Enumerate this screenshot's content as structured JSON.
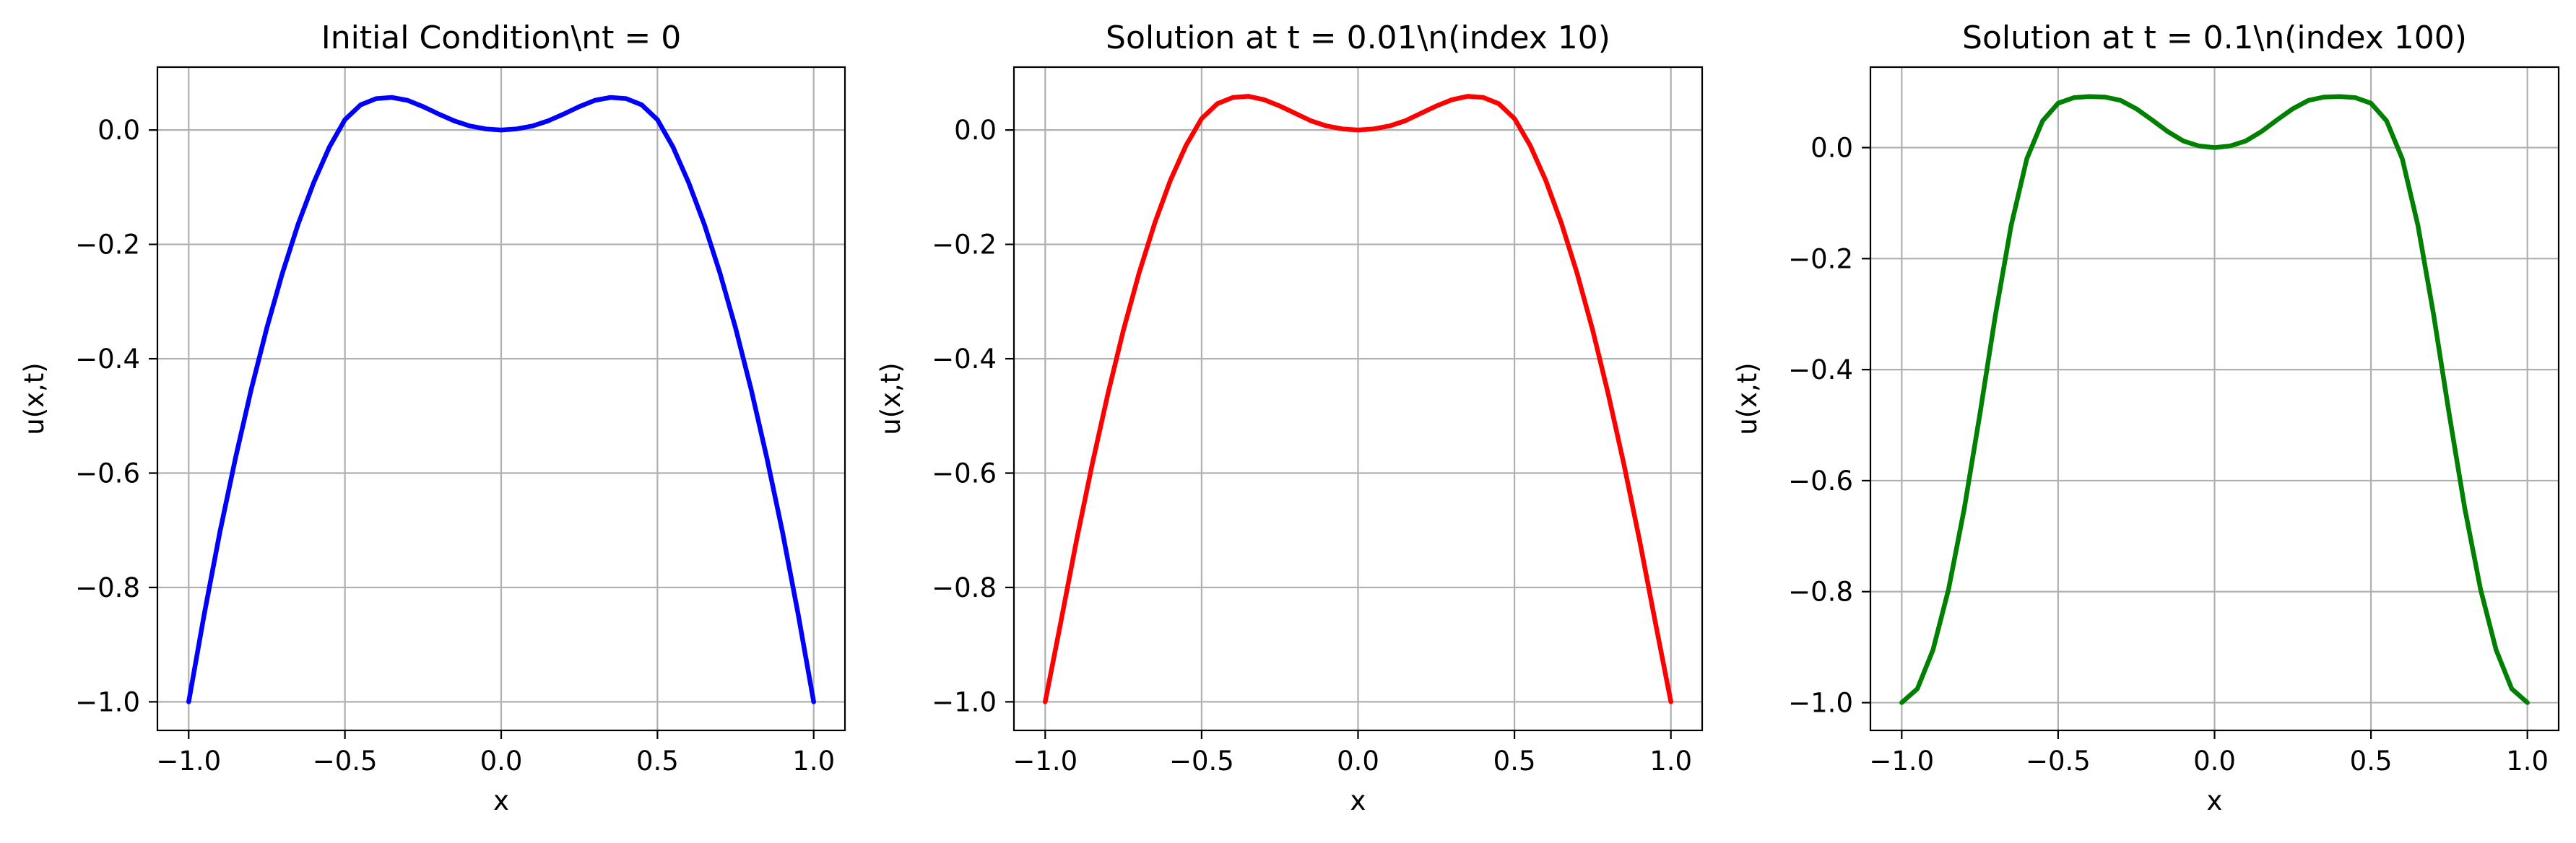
{
  "chart_data": [
    {
      "type": "line",
      "title": "Initial Condition\\nt = 0",
      "xlabel": "x",
      "ylabel": "u(x,t)",
      "xlim": [
        -1.1,
        1.1
      ],
      "ylim": [
        -1.05,
        0.11
      ],
      "xticks": [
        -1.0,
        -0.5,
        0.0,
        0.5,
        1.0
      ],
      "xtick_labels": [
        "−1.0",
        "−0.5",
        "0.0",
        "0.5",
        "1.0"
      ],
      "yticks": [
        -1.0,
        -0.8,
        -0.6,
        -0.4,
        -0.2,
        0.0
      ],
      "ytick_labels": [
        "−1.0",
        "−0.8",
        "−0.6",
        "−0.4",
        "−0.2",
        "0.0"
      ],
      "grid": true,
      "legend": null,
      "series": [
        {
          "color": "#0000ff",
          "x": [
            -1.0,
            -0.95,
            -0.9,
            -0.85,
            -0.8,
            -0.75,
            -0.7,
            -0.65,
            -0.6,
            -0.55,
            -0.5,
            -0.45,
            -0.4,
            -0.35,
            -0.3,
            -0.25,
            -0.2,
            -0.15,
            -0.1,
            -0.05,
            0.0,
            0.05,
            0.1,
            0.15,
            0.2,
            0.25,
            0.3,
            0.35,
            0.4,
            0.45,
            0.5,
            0.55,
            0.6,
            0.65,
            0.7,
            0.75,
            0.8,
            0.85,
            0.9,
            0.95,
            1.0
          ],
          "y": [
            -1.0,
            -0.846,
            -0.703,
            -0.573,
            -0.454,
            -0.346,
            -0.25,
            -0.165,
            -0.092,
            -0.03,
            0.018,
            0.044,
            0.055,
            0.057,
            0.052,
            0.041,
            0.028,
            0.016,
            0.007,
            0.002,
            0.0,
            0.002,
            0.007,
            0.016,
            0.028,
            0.041,
            0.052,
            0.057,
            0.055,
            0.044,
            0.018,
            -0.03,
            -0.092,
            -0.165,
            -0.25,
            -0.346,
            -0.454,
            -0.573,
            -0.703,
            -0.846,
            -1.0
          ]
        }
      ]
    },
    {
      "type": "line",
      "title": "Solution at t = 0.01\\n(index 10)",
      "xlabel": "x",
      "ylabel": "u(x,t)",
      "xlim": [
        -1.1,
        1.1
      ],
      "ylim": [
        -1.05,
        0.11
      ],
      "xticks": [
        -1.0,
        -0.5,
        0.0,
        0.5,
        1.0
      ],
      "xtick_labels": [
        "−1.0",
        "−0.5",
        "0.0",
        "0.5",
        "1.0"
      ],
      "yticks": [
        -1.0,
        -0.8,
        -0.6,
        -0.4,
        -0.2,
        0.0
      ],
      "ytick_labels": [
        "−1.0",
        "−0.8",
        "−0.6",
        "−0.4",
        "−0.2",
        "0.0"
      ],
      "grid": true,
      "legend": null,
      "series": [
        {
          "color": "#ff0000",
          "x": [
            -1.0,
            -0.95,
            -0.9,
            -0.85,
            -0.8,
            -0.75,
            -0.7,
            -0.65,
            -0.6,
            -0.55,
            -0.5,
            -0.45,
            -0.4,
            -0.35,
            -0.3,
            -0.25,
            -0.2,
            -0.15,
            -0.1,
            -0.05,
            0.0,
            0.05,
            0.1,
            0.15,
            0.2,
            0.25,
            0.3,
            0.35,
            0.4,
            0.45,
            0.5,
            0.55,
            0.6,
            0.65,
            0.7,
            0.75,
            0.8,
            0.85,
            0.9,
            0.95,
            1.0
          ],
          "y": [
            -1.0,
            -0.86,
            -0.718,
            -0.585,
            -0.462,
            -0.35,
            -0.25,
            -0.163,
            -0.088,
            -0.027,
            0.02,
            0.046,
            0.057,
            0.059,
            0.053,
            0.042,
            0.029,
            0.016,
            0.007,
            0.002,
            0.0,
            0.002,
            0.007,
            0.016,
            0.029,
            0.042,
            0.053,
            0.059,
            0.057,
            0.046,
            0.02,
            -0.027,
            -0.088,
            -0.163,
            -0.25,
            -0.35,
            -0.462,
            -0.585,
            -0.718,
            -0.86,
            -1.0
          ]
        }
      ]
    },
    {
      "type": "line",
      "title": "Solution at t = 0.1\\n(index 100)",
      "xlabel": "x",
      "ylabel": "u(x,t)",
      "xlim": [
        -1.1,
        1.1
      ],
      "ylim": [
        -1.05,
        0.145
      ],
      "xticks": [
        -1.0,
        -0.5,
        0.0,
        0.5,
        1.0
      ],
      "xtick_labels": [
        "−1.0",
        "−0.5",
        "0.0",
        "0.5",
        "1.0"
      ],
      "yticks": [
        -1.0,
        -0.8,
        -0.6,
        -0.4,
        -0.2,
        0.0
      ],
      "ytick_labels": [
        "−1.0",
        "−0.8",
        "−0.6",
        "−0.4",
        "−0.2",
        "0.0"
      ],
      "grid": true,
      "legend": null,
      "series": [
        {
          "color": "#008000",
          "x": [
            -1.0,
            -0.95,
            -0.9,
            -0.85,
            -0.8,
            -0.75,
            -0.7,
            -0.65,
            -0.6,
            -0.55,
            -0.5,
            -0.45,
            -0.4,
            -0.35,
            -0.3,
            -0.25,
            -0.2,
            -0.15,
            -0.1,
            -0.05,
            0.0,
            0.05,
            0.1,
            0.15,
            0.2,
            0.25,
            0.3,
            0.35,
            0.4,
            0.45,
            0.5,
            0.55,
            0.6,
            0.65,
            0.7,
            0.75,
            0.8,
            0.85,
            0.9,
            0.95,
            1.0
          ],
          "y": [
            -1.0,
            -0.975,
            -0.905,
            -0.795,
            -0.65,
            -0.48,
            -0.3,
            -0.14,
            -0.02,
            0.048,
            0.08,
            0.09,
            0.092,
            0.091,
            0.085,
            0.07,
            0.05,
            0.029,
            0.012,
            0.003,
            0.0,
            0.003,
            0.012,
            0.029,
            0.05,
            0.07,
            0.085,
            0.091,
            0.092,
            0.09,
            0.08,
            0.048,
            -0.02,
            -0.14,
            -0.3,
            -0.48,
            -0.65,
            -0.795,
            -0.905,
            -0.975,
            -1.0
          ]
        }
      ]
    }
  ]
}
